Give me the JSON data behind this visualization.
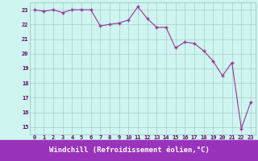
{
  "x": [
    0,
    1,
    2,
    3,
    4,
    5,
    6,
    7,
    8,
    9,
    10,
    11,
    12,
    13,
    14,
    15,
    16,
    17,
    18,
    19,
    20,
    21,
    22,
    23
  ],
  "y": [
    23.0,
    22.9,
    23.0,
    22.8,
    23.0,
    23.0,
    23.0,
    21.9,
    22.0,
    22.1,
    22.3,
    23.2,
    22.4,
    21.8,
    21.8,
    20.4,
    20.8,
    20.7,
    20.2,
    19.5,
    18.5,
    19.4,
    14.9,
    16.7
  ],
  "line_color": "#993399",
  "marker": "+",
  "bg_color": "#cef5f0",
  "grid_color": "#aacccc",
  "xlim": [
    -0.5,
    23.5
  ],
  "ylim": [
    14.5,
    23.5
  ],
  "yticks": [
    15,
    16,
    17,
    18,
    19,
    20,
    21,
    22,
    23
  ],
  "xticks": [
    0,
    1,
    2,
    3,
    4,
    5,
    6,
    7,
    8,
    9,
    10,
    11,
    12,
    13,
    14,
    15,
    16,
    17,
    18,
    19,
    20,
    21,
    22,
    23
  ],
  "xlabel": "Windchill (Refroidissement éolien,°C)",
  "tick_label_color": "#660066",
  "xlabel_bg": "#9933bb",
  "xlabel_text_color": "#ffffff"
}
